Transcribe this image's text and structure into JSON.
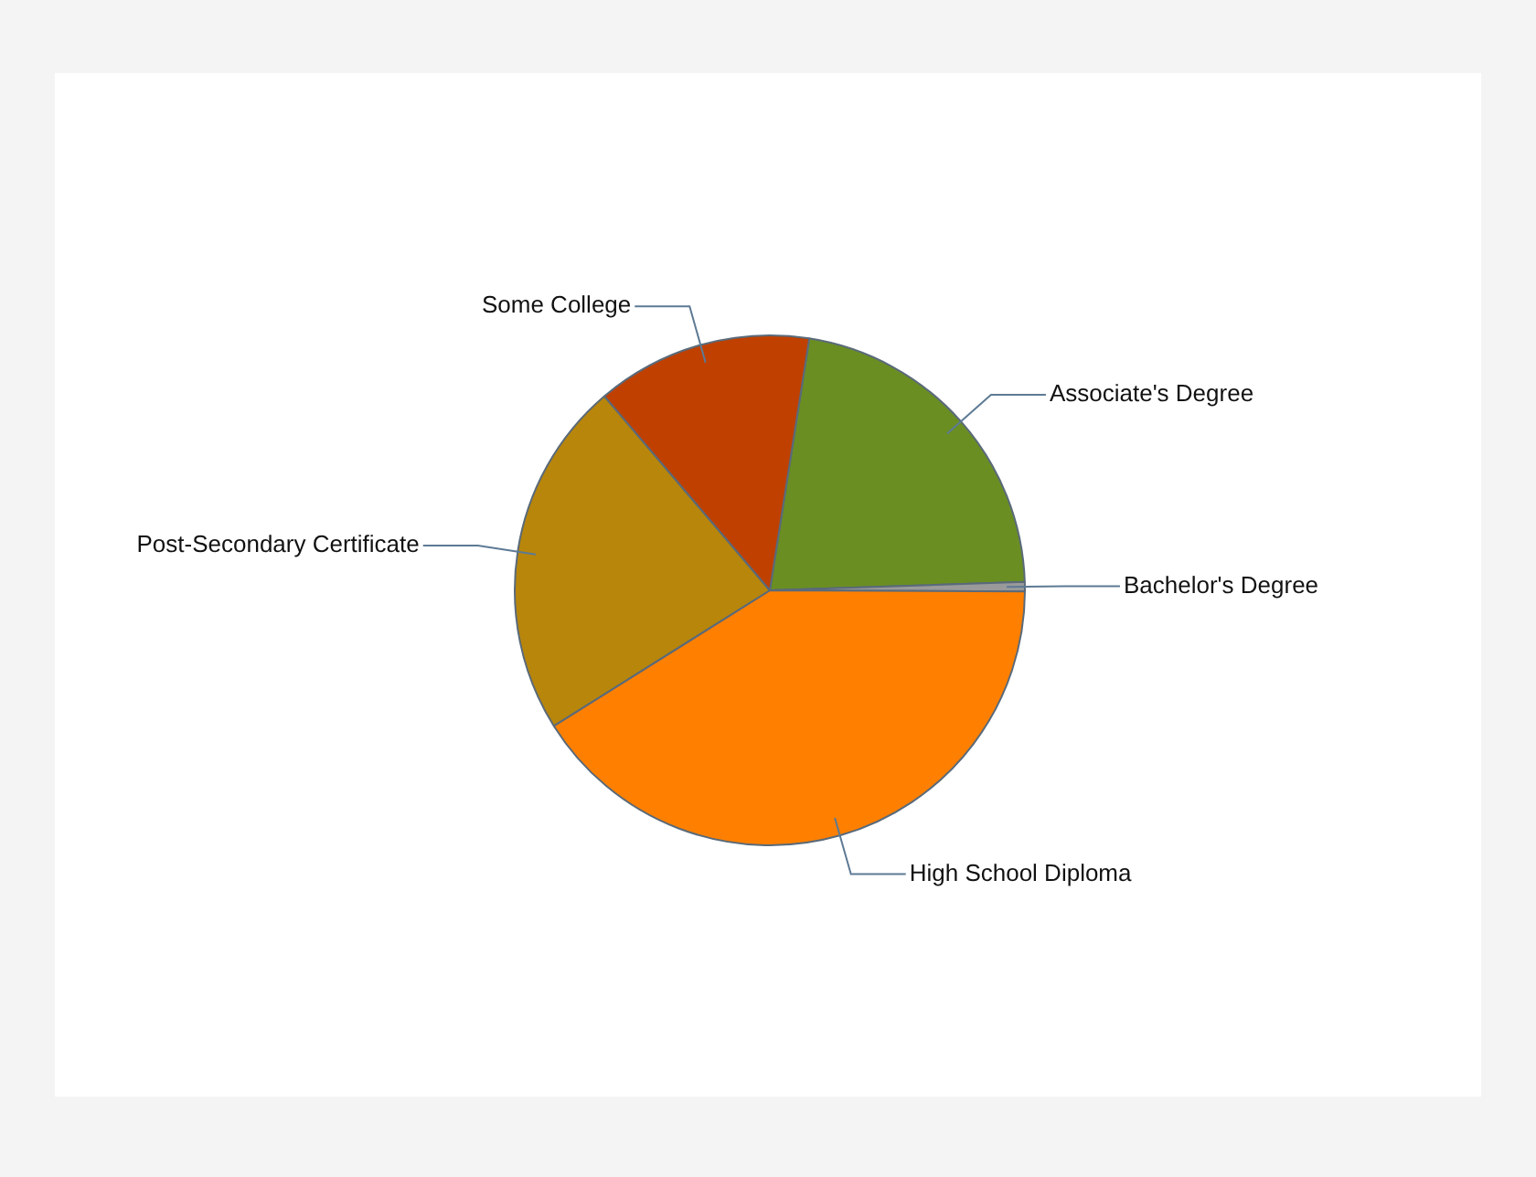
{
  "chart_data": {
    "type": "pie",
    "categories": [
      "Associate's Degree",
      "Bachelor's Degree",
      "High School Diploma",
      "Post-Secondary Certificate",
      "Some College"
    ],
    "values": [
      22,
      0.6,
      41,
      22.7,
      13.7
    ],
    "colors": [
      "#6b8e23",
      "#9a9a9a",
      "#ff8000",
      "#b8860b",
      "#c04000"
    ],
    "legend": false
  }
}
